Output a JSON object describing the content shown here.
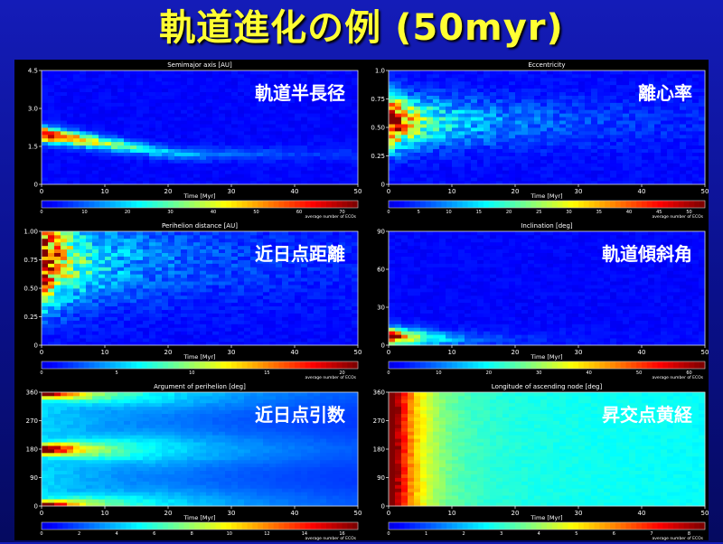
{
  "title": "軌道進化の例 (50myr)",
  "chart_data": [
    {
      "type": "heatmap",
      "jp_label": "軌道半長径",
      "title": "Semimajor axis [AU]",
      "xlabel": "Time [Myr]",
      "xlim": [
        0,
        50
      ],
      "xticks": [
        "0",
        "10",
        "20",
        "30",
        "40",
        "50"
      ],
      "ylim": [
        0,
        4.5
      ],
      "yticks": [
        "0",
        "1.5",
        "3.0",
        "4.5"
      ],
      "cbar_ticks": [
        "0",
        "10",
        "20",
        "30",
        "40",
        "50",
        "60",
        "70"
      ],
      "cbar_label": "average number of ECOs",
      "shape": "band",
      "band": {
        "start": 2.0,
        "end": 1.2,
        "width_start": 0.25,
        "width_end": 0.2,
        "fade_x": 22
      },
      "colorbar": "jet"
    },
    {
      "type": "heatmap",
      "jp_label": "離心率",
      "title": "Eccentricity",
      "xlabel": "Time [Myr]",
      "xlim": [
        0,
        50
      ],
      "xticks": [
        "0",
        "10",
        "20",
        "30",
        "40",
        "50"
      ],
      "ylim": [
        0,
        1.0
      ],
      "yticks": [
        "0",
        "0.25",
        "0.50",
        "0.75",
        "1.0"
      ],
      "cbar_ticks": [
        "0",
        "5",
        "10",
        "15",
        "20",
        "25",
        "30",
        "35",
        "40",
        "45",
        "50"
      ],
      "cbar_label": "average number of ECOs",
      "shape": "cloud",
      "cloud": {
        "y_center": 0.55,
        "spread": 0.2,
        "fade_x": 30
      },
      "colorbar": "jet"
    },
    {
      "type": "heatmap",
      "jp_label": "近日点距離",
      "title": "Perihelion distance [AU]",
      "xlabel": "Time [Myr]",
      "xlim": [
        0,
        50
      ],
      "xticks": [
        "0",
        "10",
        "20",
        "30",
        "40",
        "50"
      ],
      "ylim": [
        0,
        1.0
      ],
      "yticks": [
        "0",
        "0.25",
        "0.50",
        "0.75",
        "1.00"
      ],
      "cbar_ticks": [
        "0",
        "5",
        "10",
        "15",
        "20"
      ],
      "cbar_label": "average number of ECOs",
      "shape": "cloud",
      "cloud": {
        "y_center": 0.75,
        "spread": 0.35,
        "fade_x": 28
      },
      "colorbar": "jet"
    },
    {
      "type": "heatmap",
      "jp_label": "軌道傾斜角",
      "title": "Inclination [deg]",
      "xlabel": "Time [Myr]",
      "xlim": [
        0,
        50
      ],
      "xticks": [
        "0",
        "10",
        "20",
        "30",
        "40",
        "50"
      ],
      "ylim": [
        0,
        90
      ],
      "yticks": [
        "0",
        "30",
        "60",
        "90"
      ],
      "cbar_ticks": [
        "0",
        "10",
        "20",
        "30",
        "40",
        "50",
        "60"
      ],
      "cbar_label": "average number of ECOs",
      "shape": "band",
      "band": {
        "start": 7,
        "end": 5,
        "width_start": 6,
        "width_end": 5,
        "fade_x": 10
      },
      "colorbar": "jet"
    },
    {
      "type": "heatmap",
      "jp_label": "近日点引数",
      "title": "Argument of perihelion [deg]",
      "xlabel": "Time [Myr]",
      "xlim": [
        0,
        50
      ],
      "xticks": [
        "0",
        "10",
        "20",
        "30",
        "40",
        "50"
      ],
      "ylim": [
        0,
        360
      ],
      "yticks": [
        "0",
        "90",
        "180",
        "270",
        "360"
      ],
      "cbar_ticks": [
        "0",
        "2",
        "4",
        "6",
        "8",
        "10",
        "12",
        "14",
        "16"
      ],
      "cbar_label": "average number of ECOs",
      "shape": "lobes",
      "lobes": [
        0,
        180,
        360
      ],
      "colorbar": "jet"
    },
    {
      "type": "heatmap",
      "jp_label": "昇交点黄経",
      "title": "Longitude of ascending node [deg]",
      "xlabel": "Time [Myr]",
      "xlim": [
        0,
        50
      ],
      "xticks": [
        "0",
        "10",
        "20",
        "30",
        "40",
        "50"
      ],
      "ylim": [
        0,
        360
      ],
      "yticks": [
        "0",
        "90",
        "180",
        "270",
        "360"
      ],
      "cbar_ticks": [
        "0",
        "1",
        "2",
        "3",
        "4",
        "5",
        "6",
        "7",
        "8"
      ],
      "cbar_label": "average number of ECOs",
      "shape": "uniform",
      "colorbar": "jet"
    }
  ]
}
